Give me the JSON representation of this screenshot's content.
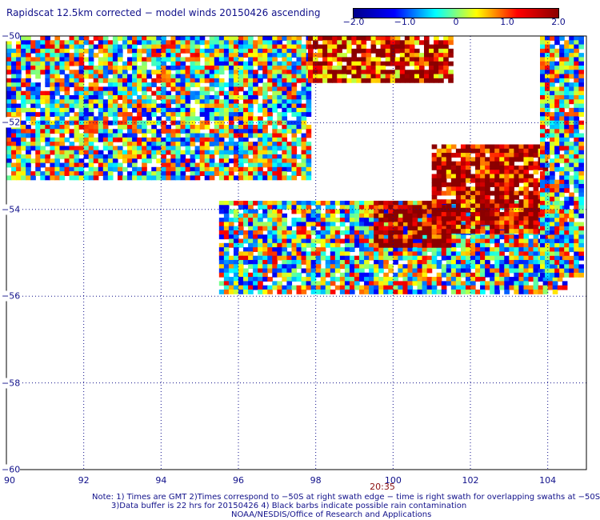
{
  "title": "Rapidscat 12.5km corrected − model winds 20150426 ascending",
  "colorbar": {
    "labels": [
      "−2.0",
      "−1.0",
      "0",
      "1.0",
      "2.0"
    ],
    "values": [
      -2.0,
      -1.0,
      0,
      1.0,
      2.0
    ]
  },
  "axes": {
    "x_ticks": [
      "90",
      "92",
      "94",
      "96",
      "98",
      "100",
      "102",
      "104"
    ],
    "x_values": [
      90,
      92,
      94,
      96,
      98,
      100,
      102,
      104
    ],
    "y_ticks": [
      "−50",
      "−52",
      "−54",
      "−56",
      "−58",
      "−60"
    ],
    "y_values": [
      -50,
      -52,
      -54,
      -56,
      -58,
      -60
    ]
  },
  "time_label": "20:35",
  "notes": {
    "line1": "Note: 1) Times are GMT 2)Times correspond to −50S at right swath edge − time is right swath for overlapping swaths at −50S",
    "line2": "3)Data buffer is 22 hrs for 20150426 4) Black barbs indicate possible rain contamination",
    "line3": "NOAA/NESDIS/Office of Research and Applications"
  },
  "chart_data": {
    "type": "heatmap",
    "title": "Rapidscat 12.5km corrected − model winds 20150426 ascending",
    "xlim": [
      90,
      105
    ],
    "ylim": [
      -60,
      -50
    ],
    "color_range": [
      -2.0,
      2.0
    ],
    "colors": [
      "#00008b",
      "#0000ff",
      "#00ffff",
      "#ffff00",
      "#ff0000",
      "#8b0000"
    ],
    "regions": [
      {
        "lon": [
          90.0,
          97.8
        ],
        "lat": [
          -53.3,
          -50.0
        ],
        "mean_value": 0.0
      },
      {
        "lon": [
          97.8,
          101.5
        ],
        "lat": [
          -51.0,
          -50.0
        ],
        "mean_value": 1.5
      },
      {
        "lon": [
          95.5,
          104.5
        ],
        "lat": [
          -55.9,
          -53.8
        ],
        "mean_value": 0.0
      },
      {
        "lon": [
          99.5,
          101.5
        ],
        "lat": [
          -54.8,
          -53.8
        ],
        "mean_value": 2.0
      },
      {
        "lon": [
          101.0,
          104.0
        ],
        "lat": [
          -54.5,
          -52.5
        ],
        "mean_value": 1.8
      },
      {
        "lon": [
          103.8,
          104.9
        ],
        "lat": [
          -55.5,
          -50.0
        ],
        "mean_value": 0.0
      }
    ]
  }
}
